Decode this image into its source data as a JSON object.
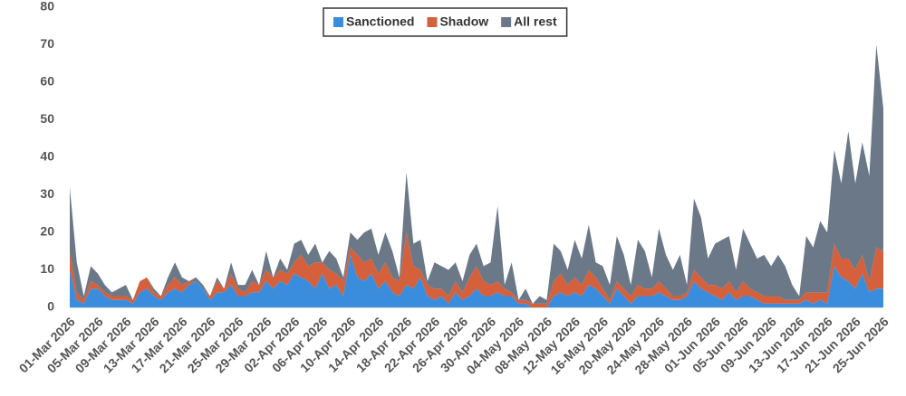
{
  "chart_data": {
    "type": "stacked-area",
    "categories": [
      "01-Mar 2026",
      null,
      null,
      null,
      "05-Mar 2026",
      null,
      null,
      null,
      "09-Mar 2026",
      null,
      null,
      null,
      "13-Mar 2026",
      null,
      null,
      null,
      "17-Mar 2026",
      null,
      null,
      null,
      "21-Mar 2026",
      null,
      null,
      null,
      "25-Mar 2026",
      null,
      null,
      null,
      "29-Mar 2026",
      null,
      null,
      null,
      "02-Apr 2026",
      null,
      null,
      null,
      "06-Apr 2026",
      null,
      null,
      null,
      "10-Apr 2026",
      null,
      null,
      null,
      "14-Apr 2026",
      null,
      null,
      null,
      "18-Apr 2026",
      null,
      null,
      null,
      "22-Apr 2026",
      null,
      null,
      null,
      "26-Apr 2026",
      null,
      null,
      null,
      "30-Apr 2026",
      null,
      null,
      null,
      "04-May 2026",
      null,
      null,
      null,
      "08-May 2026",
      null,
      null,
      null,
      "12-May 2026",
      null,
      null,
      null,
      "16-May 2026",
      null,
      null,
      null,
      "20-May 2026",
      null,
      null,
      null,
      "24-May 2026",
      null,
      null,
      null,
      "28-May 2026",
      null,
      null,
      null,
      "01-Jun 2026",
      null,
      null,
      null,
      "05-Jun 2026",
      null,
      null,
      null,
      "09-Jun 2026",
      null,
      null,
      null,
      "13-Jun 2026",
      null,
      null,
      null,
      "17-Jun 2026",
      null,
      null,
      null,
      "21-Jun 2026",
      null,
      null,
      null,
      "25-Jun 2026"
    ],
    "series": [
      {
        "name": "Sanctioned",
        "color": "#3a8ddd",
        "values": [
          10,
          2,
          1,
          5,
          5,
          3,
          2,
          2,
          2,
          1,
          4,
          5,
          3,
          2,
          4,
          5,
          4,
          6,
          7,
          5,
          2,
          4,
          4,
          6,
          3,
          3,
          4,
          4,
          7,
          5,
          7,
          6,
          9,
          8,
          7,
          5,
          9,
          5,
          6,
          3,
          14,
          8,
          7,
          9,
          5,
          7,
          4,
          3,
          6,
          5,
          8,
          3,
          2,
          3,
          1,
          4,
          2,
          3,
          5,
          3,
          3,
          4,
          3,
          3,
          1,
          1,
          0,
          0,
          0,
          3,
          4,
          3,
          4,
          3,
          6,
          5,
          3,
          1,
          5,
          3,
          1,
          3,
          3,
          3,
          4,
          3,
          2,
          2,
          3,
          7,
          5,
          4,
          3,
          2,
          4,
          2,
          3,
          3,
          2,
          1,
          1,
          1,
          1,
          1,
          1,
          2,
          1,
          2,
          1,
          11,
          8,
          7,
          5,
          9,
          4,
          5,
          5
        ]
      },
      {
        "name": "Shadow",
        "color": "#d4603c",
        "values": [
          5,
          2,
          1,
          2,
          1,
          1,
          1,
          1,
          1,
          1,
          3,
          3,
          1,
          1,
          2,
          3,
          2,
          1,
          0,
          0,
          1,
          3,
          1,
          3,
          2,
          1,
          3,
          2,
          3,
          3,
          3,
          3,
          3,
          6,
          4,
          7,
          3,
          5,
          3,
          4,
          2,
          6,
          5,
          4,
          4,
          5,
          4,
          4,
          14,
          6,
          2,
          3,
          3,
          2,
          2,
          3,
          2,
          5,
          6,
          4,
          3,
          3,
          2,
          1,
          1,
          1,
          1,
          1,
          1,
          4,
          5,
          3,
          4,
          3,
          4,
          3,
          2,
          1,
          2,
          2,
          2,
          3,
          2,
          2,
          3,
          2,
          1,
          1,
          1,
          3,
          3,
          2,
          3,
          3,
          3,
          2,
          4,
          2,
          2,
          2,
          2,
          2,
          1,
          1,
          1,
          2,
          3,
          2,
          3,
          6,
          5,
          6,
          5,
          5,
          3,
          11,
          10
        ]
      },
      {
        "name": "All rest",
        "color": "#6b7888",
        "values": [
          17,
          8,
          1,
          4,
          3,
          2,
          1,
          2,
          3,
          0,
          0,
          0,
          1,
          0,
          2,
          4,
          2,
          0,
          1,
          1,
          0,
          1,
          0,
          3,
          1,
          2,
          3,
          0,
          5,
          0,
          3,
          1,
          5,
          4,
          3,
          5,
          0,
          5,
          4,
          1,
          4,
          4,
          8,
          8,
          5,
          8,
          7,
          1,
          16,
          6,
          8,
          1,
          7,
          6,
          7,
          5,
          3,
          6,
          6,
          4,
          6,
          20,
          1,
          8,
          0,
          3,
          0,
          2,
          1,
          10,
          6,
          4,
          10,
          7,
          12,
          4,
          6,
          4,
          12,
          9,
          3,
          12,
          10,
          3,
          14,
          9,
          7,
          11,
          2,
          19,
          16,
          7,
          11,
          13,
          12,
          6,
          14,
          12,
          9,
          11,
          8,
          11,
          9,
          4,
          1,
          15,
          12,
          19,
          16,
          25,
          20,
          34,
          23,
          30,
          28,
          54,
          38
        ]
      }
    ],
    "ylim": [
      0,
      80
    ],
    "yticks": [
      0,
      10,
      20,
      30,
      40,
      50,
      60,
      70,
      80
    ],
    "legend": "top"
  }
}
